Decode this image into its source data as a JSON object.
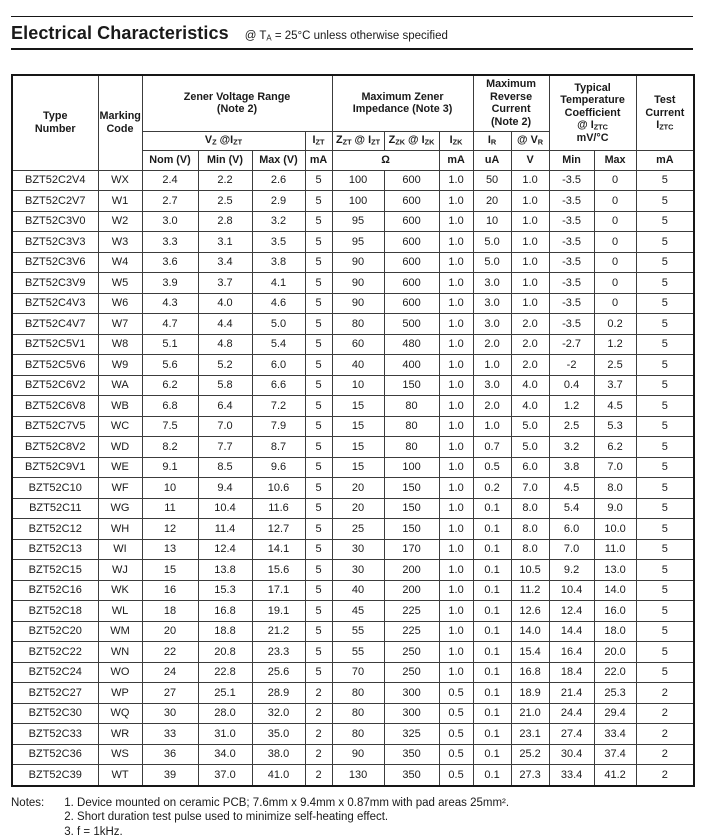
{
  "page": {
    "title": "Electrical Characteristics",
    "title_condition": "@ T~A~ = 25°C unless otherwise specified"
  },
  "table": {
    "groups": {
      "type_number": "Type\nNumber",
      "marking_code": "Marking\nCode",
      "zener_voltage_range": "Zener Voltage Range\n(Note 2)",
      "max_zener_impedance": "Maximum Zener\nImpedance (Note 3)",
      "max_reverse_current": "Maximum\nReverse\nCurrent\n(Note 2)",
      "temp_coefficient": "Typical\nTemperature\nCoefficient\n@ I~ZTC~\nmV/°C",
      "test_current": "Test\nCurrent\nI~ZTC~"
    },
    "subheaders": {
      "vz": "V~Z~ @I~ZT~",
      "izt": "I~ZT~",
      "zzt": "Z~ZT~ @ I~ZT~",
      "zzk": "Z~ZK~ @ I~ZK~",
      "izk": "I~ZK~",
      "ir": "I~R~",
      "vr": "@ V~R~"
    },
    "units": {
      "nom": "Nom (V)",
      "min": "Min (V)",
      "max": "Max (V)",
      "izt_ma": "mA",
      "ohm": "Ω",
      "izk_ma": "mA",
      "ir_ua": "uA",
      "vr_v": "V",
      "tc_min": "Min",
      "tc_max": "Max",
      "test_ma": "mA"
    },
    "columns": [
      "type-number",
      "marking-code",
      "vz-nom",
      "vz-min",
      "vz-max",
      "izt",
      "zzt",
      "zzk",
      "izk",
      "ir",
      "vr",
      "tc-min",
      "tc-max",
      "iztc"
    ],
    "rows": [
      [
        "BZT52C2V4",
        "WX",
        "2.4",
        "2.2",
        "2.6",
        "5",
        "100",
        "600",
        "1.0",
        "50",
        "1.0",
        "-3.5",
        "0",
        "5"
      ],
      [
        "BZT52C2V7",
        "W1",
        "2.7",
        "2.5",
        "2.9",
        "5",
        "100",
        "600",
        "1.0",
        "20",
        "1.0",
        "-3.5",
        "0",
        "5"
      ],
      [
        "BZT52C3V0",
        "W2",
        "3.0",
        "2.8",
        "3.2",
        "5",
        "95",
        "600",
        "1.0",
        "10",
        "1.0",
        "-3.5",
        "0",
        "5"
      ],
      [
        "BZT52C3V3",
        "W3",
        "3.3",
        "3.1",
        "3.5",
        "5",
        "95",
        "600",
        "1.0",
        "5.0",
        "1.0",
        "-3.5",
        "0",
        "5"
      ],
      [
        "BZT52C3V6",
        "W4",
        "3.6",
        "3.4",
        "3.8",
        "5",
        "90",
        "600",
        "1.0",
        "5.0",
        "1.0",
        "-3.5",
        "0",
        "5"
      ],
      [
        "BZT52C3V9",
        "W5",
        "3.9",
        "3.7",
        "4.1",
        "5",
        "90",
        "600",
        "1.0",
        "3.0",
        "1.0",
        "-3.5",
        "0",
        "5"
      ],
      [
        "BZT52C4V3",
        "W6",
        "4.3",
        "4.0",
        "4.6",
        "5",
        "90",
        "600",
        "1.0",
        "3.0",
        "1.0",
        "-3.5",
        "0",
        "5"
      ],
      [
        "BZT52C4V7",
        "W7",
        "4.7",
        "4.4",
        "5.0",
        "5",
        "80",
        "500",
        "1.0",
        "3.0",
        "2.0",
        "-3.5",
        "0.2",
        "5"
      ],
      [
        "BZT52C5V1",
        "W8",
        "5.1",
        "4.8",
        "5.4",
        "5",
        "60",
        "480",
        "1.0",
        "2.0",
        "2.0",
        "-2.7",
        "1.2",
        "5"
      ],
      [
        "BZT52C5V6",
        "W9",
        "5.6",
        "5.2",
        "6.0",
        "5",
        "40",
        "400",
        "1.0",
        "1.0",
        "2.0",
        "-2",
        "2.5",
        "5"
      ],
      [
        "BZT52C6V2",
        "WA",
        "6.2",
        "5.8",
        "6.6",
        "5",
        "10",
        "150",
        "1.0",
        "3.0",
        "4.0",
        "0.4",
        "3.7",
        "5"
      ],
      [
        "BZT52C6V8",
        "WB",
        "6.8",
        "6.4",
        "7.2",
        "5",
        "15",
        "80",
        "1.0",
        "2.0",
        "4.0",
        "1.2",
        "4.5",
        "5"
      ],
      [
        "BZT52C7V5",
        "WC",
        "7.5",
        "7.0",
        "7.9",
        "5",
        "15",
        "80",
        "1.0",
        "1.0",
        "5.0",
        "2.5",
        "5.3",
        "5"
      ],
      [
        "BZT52C8V2",
        "WD",
        "8.2",
        "7.7",
        "8.7",
        "5",
        "15",
        "80",
        "1.0",
        "0.7",
        "5.0",
        "3.2",
        "6.2",
        "5"
      ],
      [
        "BZT52C9V1",
        "WE",
        "9.1",
        "8.5",
        "9.6",
        "5",
        "15",
        "100",
        "1.0",
        "0.5",
        "6.0",
        "3.8",
        "7.0",
        "5"
      ],
      [
        "BZT52C10",
        "WF",
        "10",
        "9.4",
        "10.6",
        "5",
        "20",
        "150",
        "1.0",
        "0.2",
        "7.0",
        "4.5",
        "8.0",
        "5"
      ],
      [
        "BZT52C11",
        "WG",
        "11",
        "10.4",
        "11.6",
        "5",
        "20",
        "150",
        "1.0",
        "0.1",
        "8.0",
        "5.4",
        "9.0",
        "5"
      ],
      [
        "BZT52C12",
        "WH",
        "12",
        "11.4",
        "12.7",
        "5",
        "25",
        "150",
        "1.0",
        "0.1",
        "8.0",
        "6.0",
        "10.0",
        "5"
      ],
      [
        "BZT52C13",
        "WI",
        "13",
        "12.4",
        "14.1",
        "5",
        "30",
        "170",
        "1.0",
        "0.1",
        "8.0",
        "7.0",
        "11.0",
        "5"
      ],
      [
        "BZT52C15",
        "WJ",
        "15",
        "13.8",
        "15.6",
        "5",
        "30",
        "200",
        "1.0",
        "0.1",
        "10.5",
        "9.2",
        "13.0",
        "5"
      ],
      [
        "BZT52C16",
        "WK",
        "16",
        "15.3",
        "17.1",
        "5",
        "40",
        "200",
        "1.0",
        "0.1",
        "11.2",
        "10.4",
        "14.0",
        "5"
      ],
      [
        "BZT52C18",
        "WL",
        "18",
        "16.8",
        "19.1",
        "5",
        "45",
        "225",
        "1.0",
        "0.1",
        "12.6",
        "12.4",
        "16.0",
        "5"
      ],
      [
        "BZT52C20",
        "WM",
        "20",
        "18.8",
        "21.2",
        "5",
        "55",
        "225",
        "1.0",
        "0.1",
        "14.0",
        "14.4",
        "18.0",
        "5"
      ],
      [
        "BZT52C22",
        "WN",
        "22",
        "20.8",
        "23.3",
        "5",
        "55",
        "250",
        "1.0",
        "0.1",
        "15.4",
        "16.4",
        "20.0",
        "5"
      ],
      [
        "BZT52C24",
        "WO",
        "24",
        "22.8",
        "25.6",
        "5",
        "70",
        "250",
        "1.0",
        "0.1",
        "16.8",
        "18.4",
        "22.0",
        "5"
      ],
      [
        "BZT52C27",
        "WP",
        "27",
        "25.1",
        "28.9",
        "2",
        "80",
        "300",
        "0.5",
        "0.1",
        "18.9",
        "21.4",
        "25.3",
        "2"
      ],
      [
        "BZT52C30",
        "WQ",
        "30",
        "28.0",
        "32.0",
        "2",
        "80",
        "300",
        "0.5",
        "0.1",
        "21.0",
        "24.4",
        "29.4",
        "2"
      ],
      [
        "BZT52C33",
        "WR",
        "33",
        "31.0",
        "35.0",
        "2",
        "80",
        "325",
        "0.5",
        "0.1",
        "23.1",
        "27.4",
        "33.4",
        "2"
      ],
      [
        "BZT52C36",
        "WS",
        "36",
        "34.0",
        "38.0",
        "2",
        "90",
        "350",
        "0.5",
        "0.1",
        "25.2",
        "30.4",
        "37.4",
        "2"
      ],
      [
        "BZT52C39",
        "WT",
        "39",
        "37.0",
        "41.0",
        "2",
        "130",
        "350",
        "0.5",
        "0.1",
        "27.3",
        "33.4",
        "41.2",
        "2"
      ]
    ]
  },
  "notes": {
    "label": "Notes:",
    "items": [
      "1. Device mounted on ceramic PCB; 7.6mm x 9.4mm x 0.87mm with pad areas 25mm².",
      "2. Short duration test pulse used to minimize self-heating effect.",
      "3. f = 1kHz."
    ]
  }
}
